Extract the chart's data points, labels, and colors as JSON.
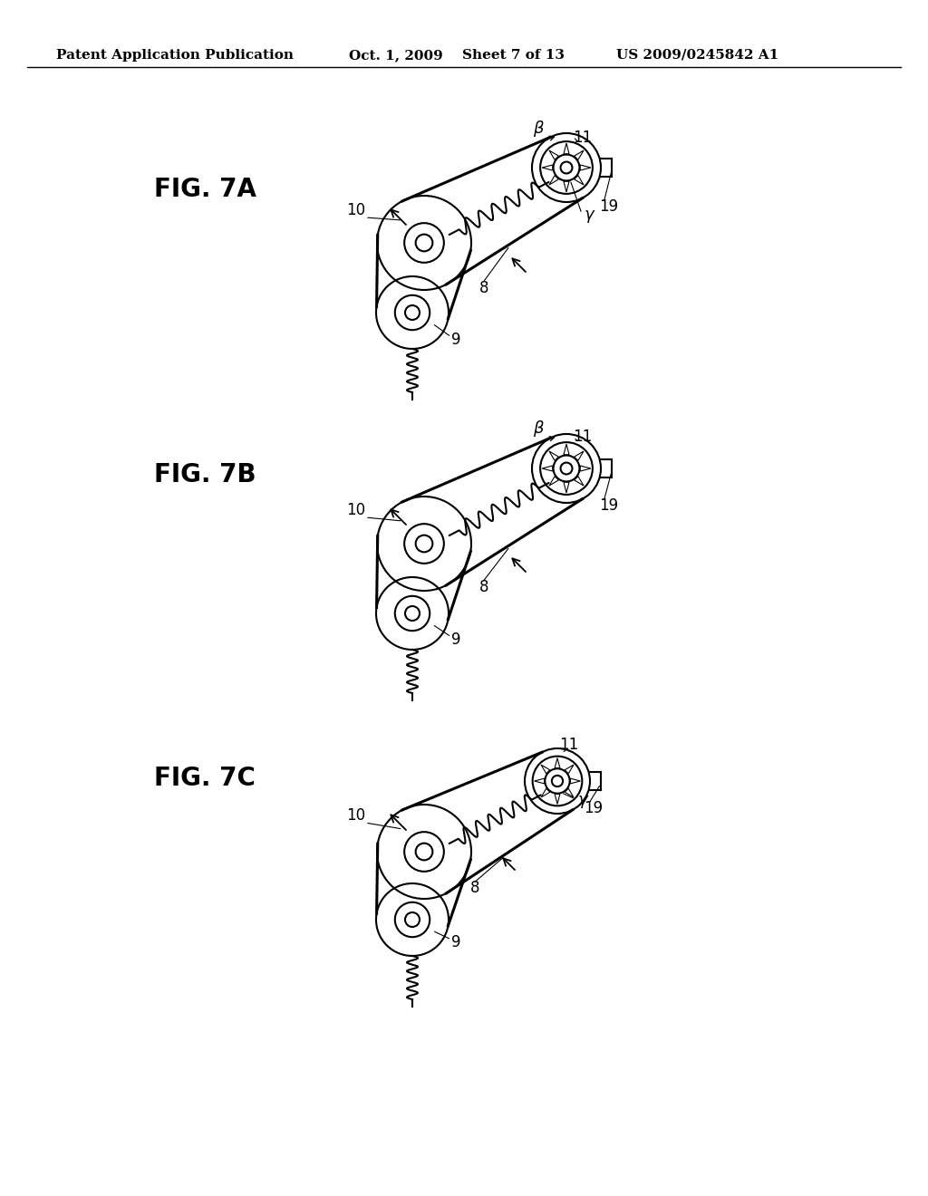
{
  "title_header": "Patent Application Publication",
  "date": "Oct. 1, 2009",
  "sheet": "Sheet 7 of 13",
  "patent_num": "US 2009/0245842 A1",
  "background": "#ffffff",
  "fig_label_fontsize": 20,
  "header_fontsize": 11
}
